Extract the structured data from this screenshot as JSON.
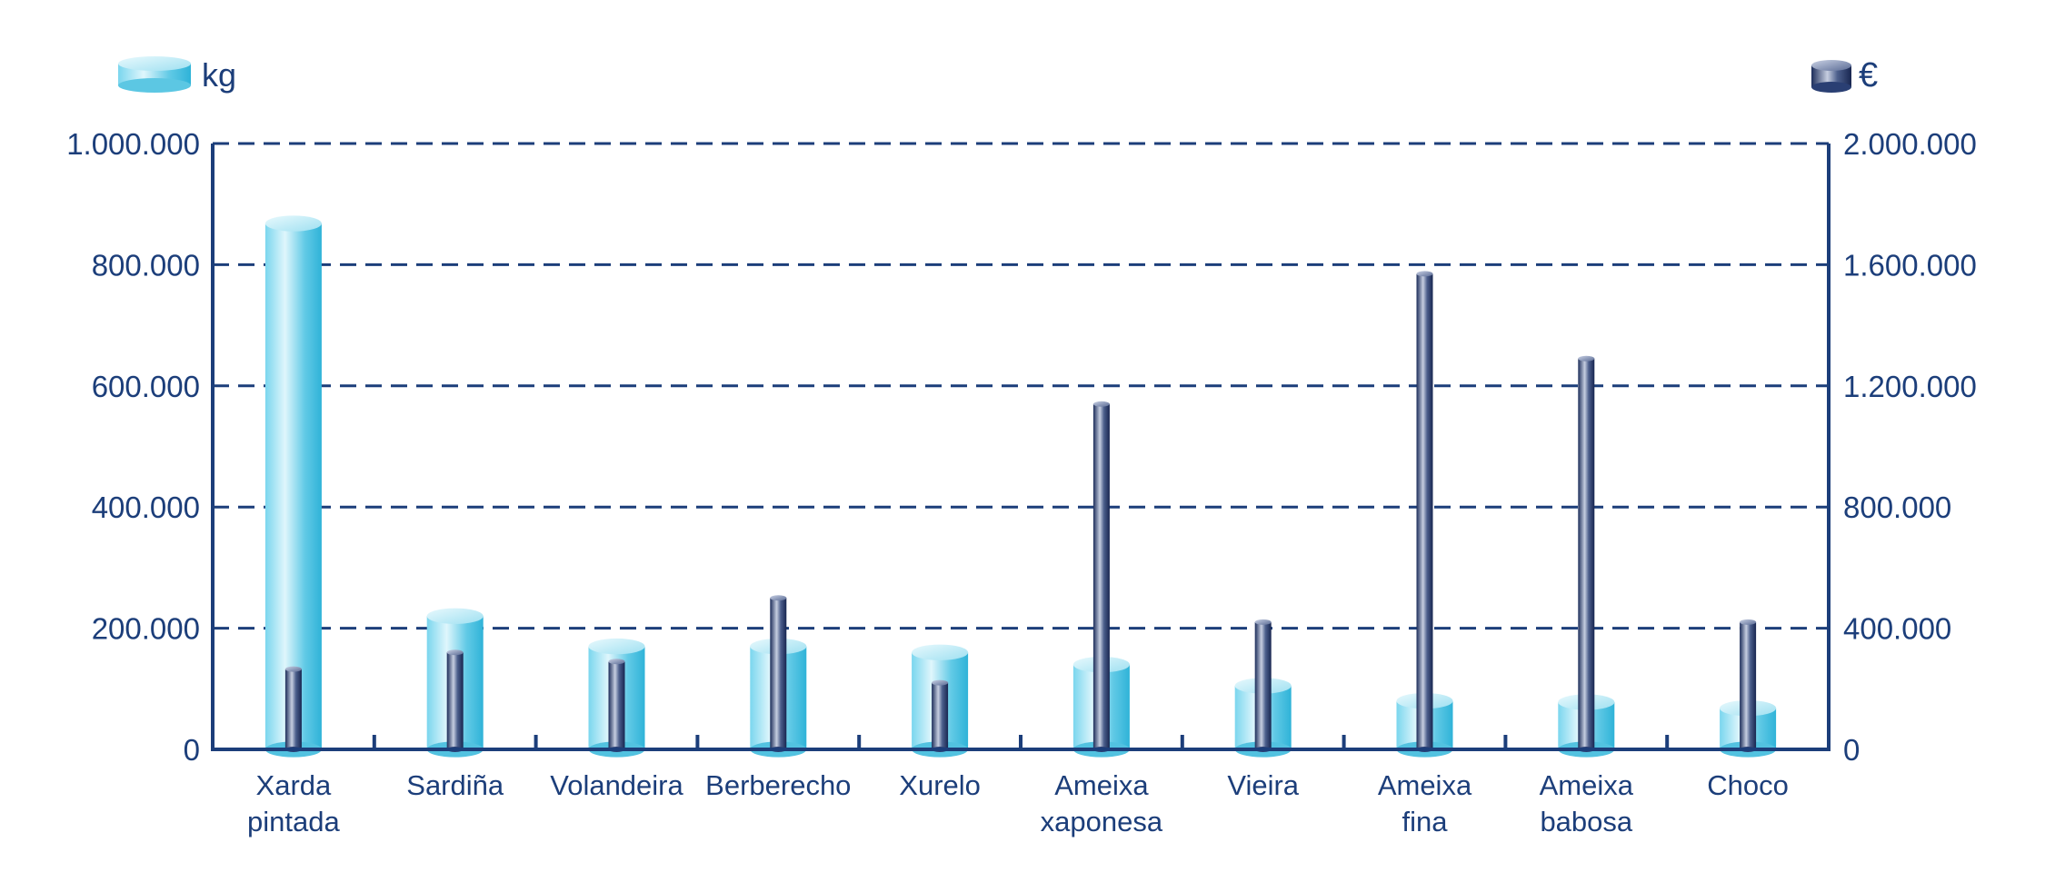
{
  "chart_data": {
    "type": "bar",
    "title": "",
    "xlabel": "",
    "legend": {
      "placement": "top",
      "left_label": "kg",
      "right_label": "€"
    },
    "categories": [
      [
        "Xarda",
        "pintada"
      ],
      [
        "Sardiña"
      ],
      [
        "Volandeira"
      ],
      [
        "Berberecho"
      ],
      [
        "Xurelo"
      ],
      [
        "Ameixa",
        "xaponesa"
      ],
      [
        "Vieira"
      ],
      [
        "Ameixa",
        "fina"
      ],
      [
        "Ameixa",
        "babosa"
      ],
      [
        "Choco"
      ]
    ],
    "series": [
      {
        "name": "kg",
        "axis": "left",
        "style": "wide-cylinder",
        "values": [
          868000,
          220000,
          170000,
          170000,
          160000,
          140000,
          105000,
          80000,
          78000,
          68000
        ]
      },
      {
        "name": "€",
        "axis": "right",
        "style": "thin-cylinder",
        "values": [
          265000,
          320000,
          290000,
          500000,
          220000,
          1140000,
          420000,
          1570000,
          1290000,
          420000
        ]
      }
    ],
    "y_left": {
      "ylim": [
        0,
        1000000
      ],
      "ticks": [
        0,
        200000,
        400000,
        600000,
        800000,
        1000000
      ],
      "tick_labels": [
        "0",
        "200.000",
        "400.000",
        "600.000",
        "800.000",
        "1.000.000"
      ]
    },
    "y_right": {
      "ylim": [
        0,
        2000000
      ],
      "ticks": [
        0,
        400000,
        800000,
        1200000,
        1600000,
        2000000
      ],
      "tick_labels": [
        "0",
        "400.000",
        "800.000",
        "1.200.000",
        "1.600.000",
        "2.000.000"
      ]
    },
    "grid": "horizontal-dashed",
    "colors": {
      "axis": "#1c3e7a",
      "kg_bar": "#5ccbe6",
      "eur_bar": "#2a3f73",
      "text": "#1c3e7a"
    }
  }
}
